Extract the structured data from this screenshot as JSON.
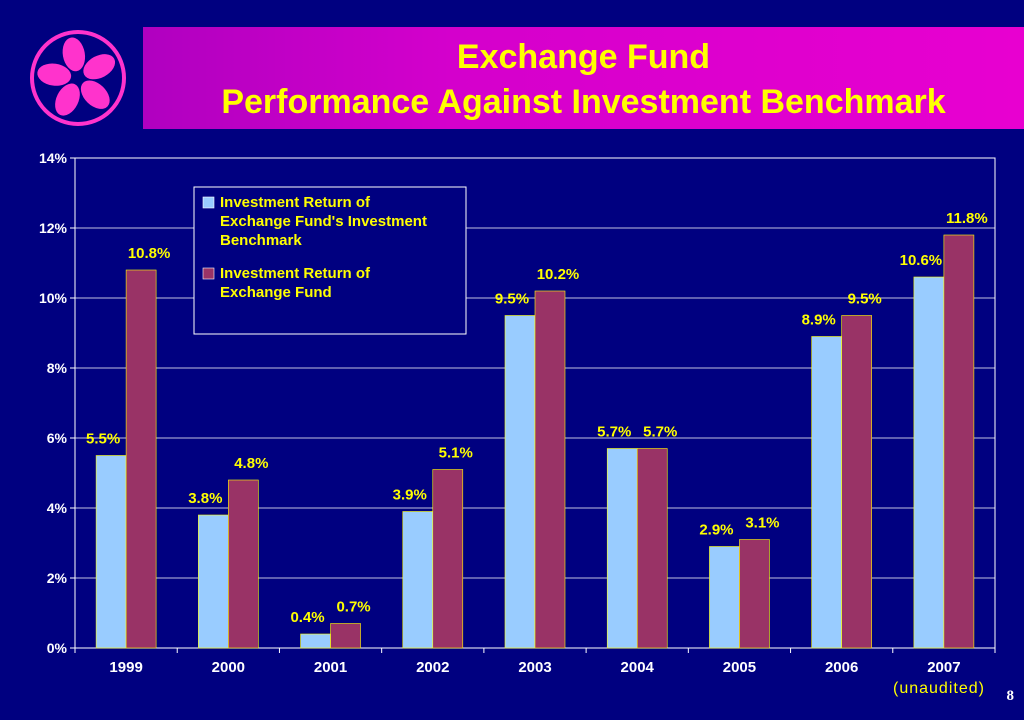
{
  "header": {
    "title_line1": "Exchange Fund",
    "title_line2": "Performance Against Investment Benchmark"
  },
  "page_number": "8",
  "note": "(unaudited)",
  "colors": {
    "background": "#000080",
    "title_text": "#ffff00",
    "benchmark": "#99ccff",
    "fund": "#993366",
    "logo": "#ff33cc"
  },
  "chart_data": {
    "type": "bar",
    "categories": [
      "1999",
      "2000",
      "2001",
      "2002",
      "2003",
      "2004",
      "2005",
      "2006",
      "2007"
    ],
    "series": [
      {
        "name": "Investment Return of Exchange Fund's Investment Benchmark",
        "values": [
          5.5,
          3.8,
          0.4,
          3.9,
          9.5,
          5.7,
          2.9,
          8.9,
          10.6
        ],
        "labels": [
          "5.5%",
          "3.8%",
          "0.4%",
          "3.9%",
          "9.5%",
          "5.7%",
          "2.9%",
          "8.9%",
          "10.6%"
        ]
      },
      {
        "name": "Investment Return of Exchange Fund",
        "values": [
          10.8,
          4.8,
          0.7,
          5.1,
          10.2,
          5.7,
          3.1,
          9.5,
          11.8
        ],
        "labels": [
          "10.8%",
          "4.8%",
          "0.7%",
          "5.1%",
          "10.2%",
          "5.7%",
          "3.1%",
          "9.5%",
          "11.8%"
        ]
      }
    ],
    "legend_lines": [
      [
        "Investment Return of",
        "Exchange Fund's Investment",
        "Benchmark"
      ],
      [
        "Investment Return of",
        "Exchange Fund"
      ]
    ],
    "ylim": [
      0,
      14
    ],
    "yticks": [
      0,
      2,
      4,
      6,
      8,
      10,
      12,
      14
    ],
    "ytick_labels": [
      "0%",
      "2%",
      "4%",
      "6%",
      "8%",
      "10%",
      "12%",
      "14%"
    ],
    "grid": true,
    "legend_position": "top-left"
  }
}
